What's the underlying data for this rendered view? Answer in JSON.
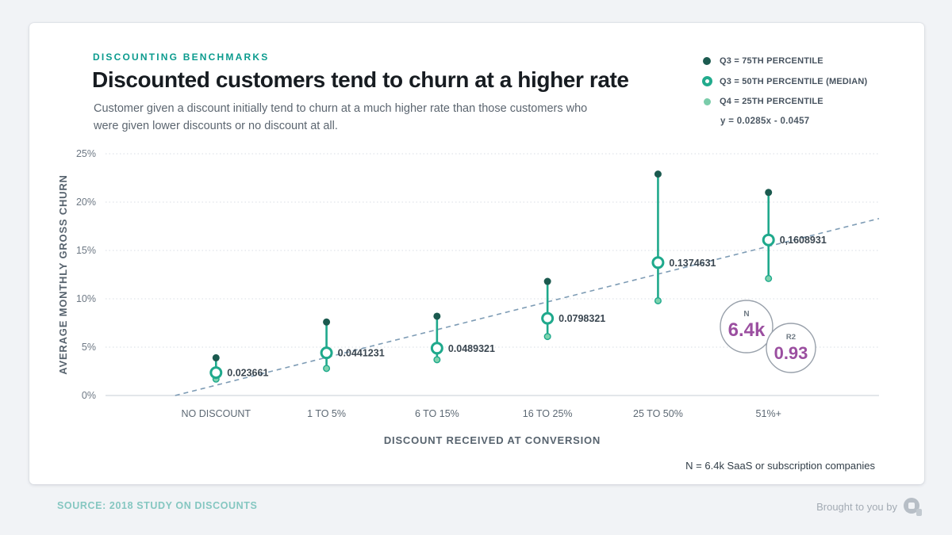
{
  "header": {
    "eyebrow": "DISCOUNTING BENCHMARKS",
    "title": "Discounted customers tend to churn at a higher rate",
    "subtitle": "Customer given a discount initially tend to churn at a much higher rate than those customers who were given lower discounts or no discount at all."
  },
  "legend": {
    "items": [
      {
        "label": "Q3 = 75TH PERCENTILE",
        "marker": "filled-dark"
      },
      {
        "label": "Q3 = 50TH PERCENTILE (MEDIAN)",
        "marker": "ring"
      },
      {
        "label": "Q4 = 25TH PERCENTILE",
        "marker": "filled-light"
      }
    ],
    "regression": "y = 0.0285x - 0.0457"
  },
  "chart_data": {
    "type": "scatter",
    "subtype": "dot-whisker-percentiles",
    "categories": [
      "NO DISCOUNT",
      "1 TO 5%",
      "6 TO 15%",
      "16 TO 25%",
      "25 TO 50%",
      "51%+"
    ],
    "series": [
      {
        "name": "Q3 = 75TH PERCENTILE",
        "values": [
          0.039,
          0.076,
          0.082,
          0.118,
          0.229,
          0.21
        ]
      },
      {
        "name": "Q3 = 50TH PERCENTILE (MEDIAN)",
        "values": [
          0.023661,
          0.0441231,
          0.0489321,
          0.0798321,
          0.1374631,
          0.1608931
        ],
        "labels": [
          "0.023661",
          "0.0441231",
          "0.0489321",
          "0.0798321",
          "0.1374631",
          "0,1608931"
        ]
      },
      {
        "name": "Q4 = 25TH PERCENTILE",
        "values": [
          0.017,
          0.028,
          0.037,
          0.061,
          0.098,
          0.121
        ]
      }
    ],
    "title": "Discounted customers tend to churn at a higher rate",
    "xlabel": "DISCOUNT RECEIVED AT CONVERSION",
    "ylabel": "AVERAGE MONTHLY GROSS CHURN",
    "ylim": [
      0,
      0.25
    ],
    "yticks": [
      "0%",
      "5%",
      "10%",
      "15%",
      "20%",
      "25%"
    ],
    "grid": true,
    "legend_position": "top-right",
    "trendline": {
      "equation": "y = 0.0285x - 0.0457",
      "x_start_category": 0.63,
      "y_start": 0,
      "x_end_category": 7.0,
      "y_end": 0.183
    }
  },
  "stats": {
    "n_label": "N",
    "n_value": "6.4k",
    "r2_label": "R2",
    "r2_value": "0.93"
  },
  "footnote": "N = 6.4k SaaS or subscription companies",
  "footer": {
    "source": "SOURCE: 2018 STUDY ON DISCOUNTS",
    "brought_by": "Brought to you by",
    "logo": "profitwell-logo"
  },
  "colors": {
    "teal": "#1fa98c",
    "dark_dot": "#1b5a4f",
    "light_dot": "#7ed3ae",
    "accent_purple": "#9b4fa0",
    "trend": "#7e9cb5",
    "eyebrow_teal": "#0b9b8e",
    "source_teal": "#85c7c1",
    "grid": "#d8dee5"
  }
}
